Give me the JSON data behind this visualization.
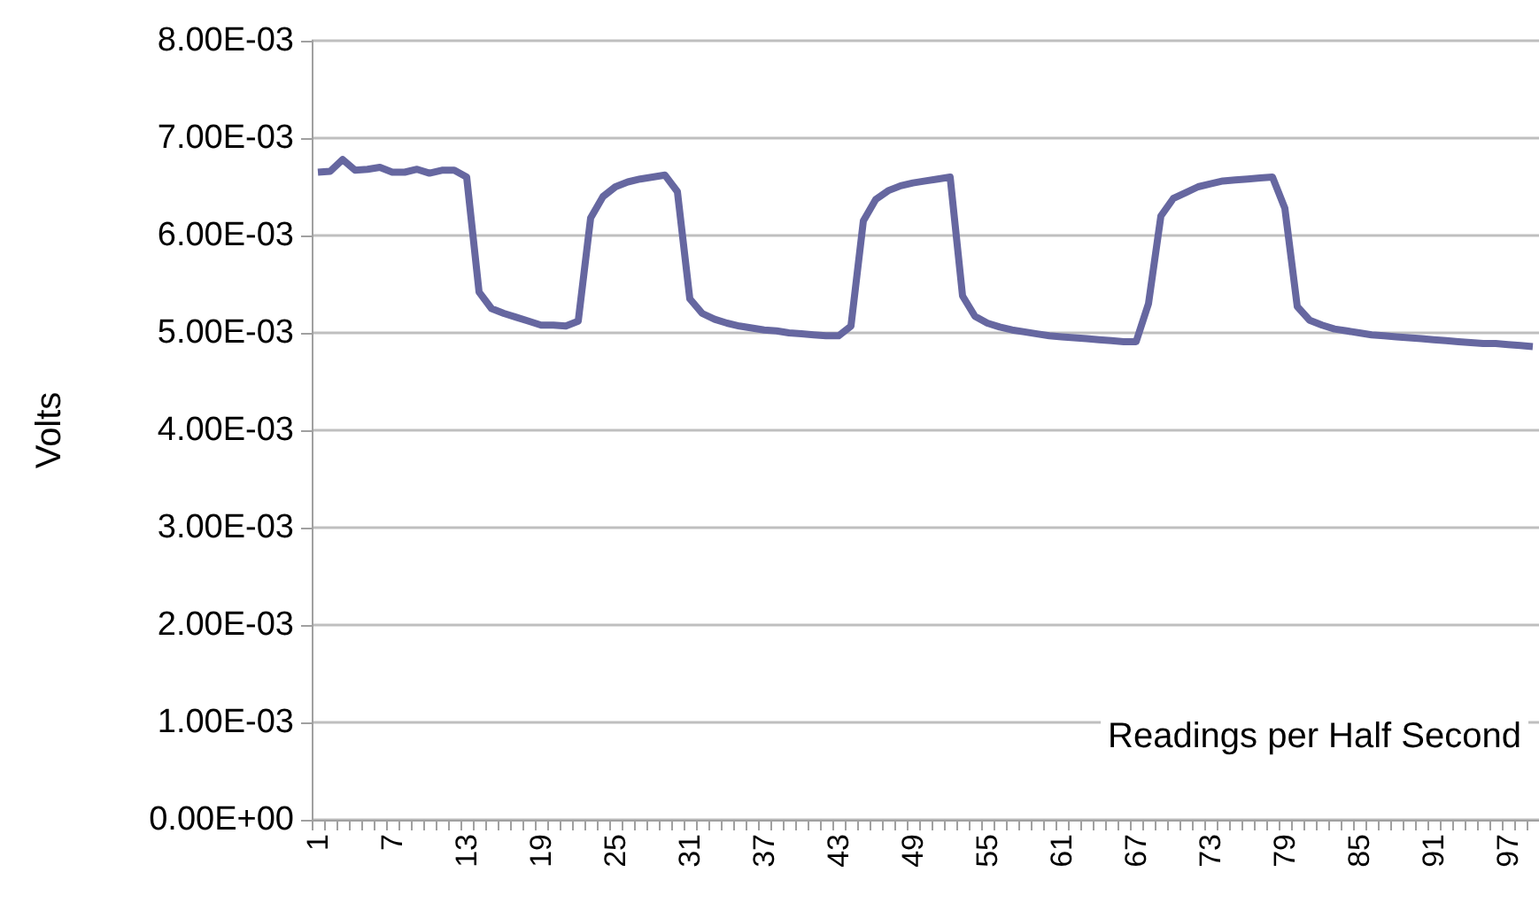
{
  "chart_data": {
    "type": "line",
    "xlabel": "Readings per Half Second",
    "ylabel": "Volts",
    "categories": [
      "1",
      null,
      null,
      null,
      null,
      null,
      "7",
      null,
      null,
      null,
      null,
      null,
      "13",
      null,
      null,
      null,
      null,
      null,
      "19",
      null,
      null,
      null,
      null,
      null,
      "25",
      null,
      null,
      null,
      null,
      null,
      "31",
      null,
      null,
      null,
      null,
      null,
      "37",
      null,
      null,
      null,
      null,
      null,
      "43",
      null,
      null,
      null,
      null,
      null,
      "49",
      null,
      null,
      null,
      null,
      null,
      "55",
      null,
      null,
      null,
      null,
      null,
      "61",
      null,
      null,
      null,
      null,
      null,
      "67",
      null,
      null,
      null,
      null,
      null,
      "73",
      null,
      null,
      null,
      null,
      null,
      "79",
      null,
      null,
      null,
      null,
      null,
      "85",
      null,
      null,
      null,
      null,
      null,
      "91",
      null,
      null,
      null,
      null,
      null,
      "97",
      null,
      null
    ],
    "series": [
      {
        "color": "#6667a0",
        "values": [
          0.00665,
          0.00666,
          0.00678,
          0.00667,
          0.00668,
          0.0067,
          0.00665,
          0.00665,
          0.00668,
          0.00664,
          0.00667,
          0.00667,
          0.0066,
          0.00542,
          0.00525,
          0.0052,
          0.00516,
          0.00512,
          0.00508,
          0.00508,
          0.00507,
          0.00512,
          0.00618,
          0.0064,
          0.0065,
          0.00655,
          0.00658,
          0.0066,
          0.00662,
          0.00645,
          0.00535,
          0.0052,
          0.00514,
          0.0051,
          0.00507,
          0.00505,
          0.00503,
          0.00502,
          0.005,
          0.00499,
          0.00498,
          0.00497,
          0.00497,
          0.00507,
          0.00615,
          0.00637,
          0.00646,
          0.00651,
          0.00654,
          0.00656,
          0.00658,
          0.0066,
          0.00538,
          0.00517,
          0.0051,
          0.00506,
          0.00503,
          0.00501,
          0.00499,
          0.00497,
          0.00496,
          0.00495,
          0.00494,
          0.00493,
          0.00492,
          0.00491,
          0.00491,
          0.0053,
          0.0062,
          0.00638,
          0.00644,
          0.0065,
          0.00653,
          0.00656,
          0.00657,
          0.00658,
          0.00659,
          0.0066,
          0.00628,
          0.00527,
          0.00513,
          0.00508,
          0.00504,
          0.00502,
          0.005,
          0.00498,
          0.00497,
          0.00496,
          0.00495,
          0.00494,
          0.00493,
          0.00492,
          0.00491,
          0.0049,
          0.00489,
          0.00489,
          0.00488,
          0.00487,
          0.00486
        ]
      }
    ],
    "ylim": [
      0,
      0.008
    ],
    "yticks": [
      {
        "value": 0,
        "label": "0.00E+00"
      },
      {
        "value": 0.001,
        "label": "1.00E-03"
      },
      {
        "value": 0.002,
        "label": "2.00E-03"
      },
      {
        "value": 0.003,
        "label": "3.00E-03"
      },
      {
        "value": 0.004,
        "label": "4.00E-03"
      },
      {
        "value": 0.005,
        "label": "5.00E-03"
      },
      {
        "value": 0.006,
        "label": "6.00E-03"
      },
      {
        "value": 0.007,
        "label": "7.00E-03"
      },
      {
        "value": 0.008,
        "label": "8.00E-03"
      }
    ],
    "grid": "y",
    "marker": "none",
    "line_style": "solid"
  }
}
